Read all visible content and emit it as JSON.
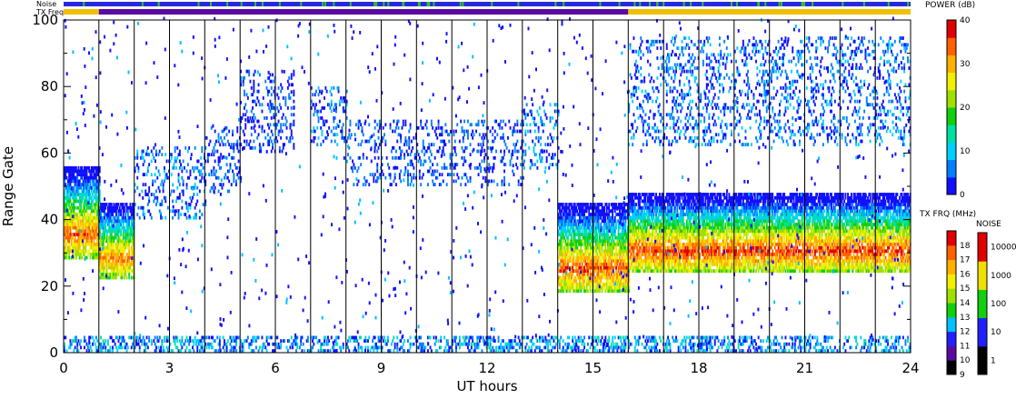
{
  "header": {
    "noise_label": "Noise",
    "txfreq_label": "TX Freq"
  },
  "chart_data": {
    "type": "heatmap",
    "xlabel": "UT hours",
    "ylabel": "Range Gate",
    "xlim": [
      0,
      24
    ],
    "ylim": [
      0,
      100
    ],
    "x_ticks": [
      "0",
      "3",
      "6",
      "9",
      "12",
      "15",
      "18",
      "21",
      "24"
    ],
    "y_ticks": [
      "0",
      "20",
      "40",
      "60",
      "80",
      "100"
    ],
    "scan_boundaries_ut": [
      1,
      2,
      3,
      4,
      5,
      6,
      7,
      8,
      9,
      10,
      11,
      12,
      13,
      14,
      15,
      16,
      17,
      18,
      19,
      20,
      21,
      22,
      23
    ],
    "noise_bar": {
      "dominant_color": "#2828e0",
      "speckle_color": "#30c030"
    },
    "txfreq_bar": [
      {
        "start": 0,
        "end": 1,
        "color": "#f0c000"
      },
      {
        "start": 1,
        "end": 16,
        "color": "#5a0aa0"
      },
      {
        "start": 16,
        "end": 24,
        "color": "#f0c000"
      }
    ],
    "power_colorbar": {
      "title": "POWER (dB)",
      "ticks": [
        "0",
        "10",
        "20",
        "30",
        "40"
      ],
      "range": [
        0,
        40
      ],
      "colors": [
        "#1010ff",
        "#0080ff",
        "#00d0ff",
        "#00e0a0",
        "#10d010",
        "#a0e000",
        "#f0f000",
        "#ffb000",
        "#ff6000",
        "#e00000"
      ]
    },
    "txfreq_colorbar": {
      "title": "TX FRQ (MHz)",
      "ticks": [
        "9",
        "10",
        "11",
        "12",
        "13",
        "14",
        "15",
        "16",
        "17",
        "18"
      ],
      "colors": [
        "#000000",
        "#5a0aa0",
        "#2020ff",
        "#00c0ff",
        "#10d010",
        "#a0e000",
        "#f0f000",
        "#ffb000",
        "#ff6000",
        "#e00000"
      ]
    },
    "noise_colorbar": {
      "title": "NOISE",
      "ticks": [
        "1",
        "10",
        "100",
        "1000",
        "10000"
      ],
      "colors": [
        "#000000",
        "#2020ff",
        "#10d010",
        "#f0e000",
        "#e00000"
      ]
    },
    "data_regions": [
      {
        "ut": [
          0.0,
          1.0
        ],
        "gate": [
          28,
          56
        ],
        "peak_power": 34,
        "description": "dense"
      },
      {
        "ut": [
          1.0,
          2.0
        ],
        "gate": [
          22,
          45
        ],
        "peak_power": 32
      },
      {
        "ut": [
          2.0,
          4.0
        ],
        "gate": [
          40,
          62
        ],
        "peak_power": 10
      },
      {
        "ut": [
          4.0,
          5.0
        ],
        "gate": [
          48,
          68
        ],
        "peak_power": 8
      },
      {
        "ut": [
          5.0,
          6.5
        ],
        "gate": [
          60,
          85
        ],
        "peak_power": 6
      },
      {
        "ut": [
          7.0,
          8.0
        ],
        "gate": [
          62,
          80
        ],
        "peak_power": 10
      },
      {
        "ut": [
          8.0,
          13.0
        ],
        "gate": [
          50,
          70
        ],
        "peak_power": 8
      },
      {
        "ut": [
          13.0,
          14.0
        ],
        "gate": [
          55,
          75
        ],
        "peak_power": 12
      },
      {
        "ut": [
          14.0,
          16.0
        ],
        "gate": [
          18,
          45
        ],
        "peak_power": 35
      },
      {
        "ut": [
          16.0,
          24.0
        ],
        "gate": [
          24,
          48
        ],
        "peak_power": 36
      },
      {
        "ut": [
          16.0,
          24.0
        ],
        "gate": [
          62,
          95
        ],
        "peak_power": 10
      },
      {
        "ut": [
          0.0,
          24.0
        ],
        "gate": [
          0,
          5
        ],
        "peak_power": 14,
        "description": "ground clutter"
      }
    ]
  }
}
